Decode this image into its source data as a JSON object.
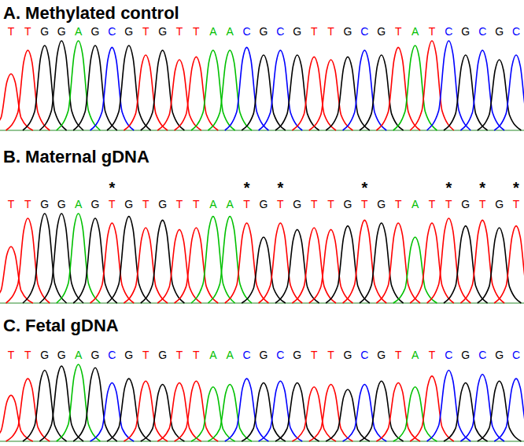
{
  "chart_data": [
    {
      "type": "chromatogram",
      "title": "A. Methylated control",
      "tick_labels": false,
      "categories": [
        "T",
        "T",
        "G",
        "G",
        "A",
        "G",
        "C",
        "G",
        "T",
        "G",
        "T",
        "T",
        "A",
        "A",
        "C",
        "G",
        "C",
        "G",
        "T",
        "T",
        "G",
        "C",
        "G",
        "T",
        "A",
        "T",
        "C",
        "G",
        "C",
        "G",
        "C"
      ],
      "values": [
        60,
        85,
        90,
        95,
        95,
        90,
        88,
        90,
        80,
        85,
        75,
        78,
        85,
        85,
        88,
        80,
        85,
        80,
        78,
        75,
        78,
        85,
        80,
        88,
        90,
        95,
        95,
        80,
        85,
        75,
        80
      ],
      "colors": [
        "#ff0000",
        "#ff0000",
        "#000000",
        "#000000",
        "#00c000",
        "#000000",
        "#0000ff",
        "#000000",
        "#ff0000",
        "#000000",
        "#ff0000",
        "#ff0000",
        "#00c000",
        "#00c000",
        "#0000ff",
        "#000000",
        "#0000ff",
        "#000000",
        "#ff0000",
        "#ff0000",
        "#000000",
        "#0000ff",
        "#000000",
        "#ff0000",
        "#00c000",
        "#ff0000",
        "#0000ff",
        "#000000",
        "#0000ff",
        "#000000",
        "#0000ff"
      ]
    },
    {
      "type": "chromatogram",
      "title": "B. Maternal gDNA",
      "tick_labels": false,
      "categories": [
        "T",
        "T",
        "G",
        "G",
        "A",
        "G",
        "T",
        "G",
        "T",
        "G",
        "T",
        "T",
        "A",
        "A",
        "T",
        "G",
        "T",
        "G",
        "T",
        "T",
        "G",
        "T",
        "G",
        "T",
        "A",
        "T",
        "T",
        "G",
        "T",
        "G",
        "T"
      ],
      "values": [
        60,
        90,
        95,
        95,
        95,
        90,
        85,
        92,
        80,
        88,
        78,
        80,
        92,
        92,
        85,
        70,
        85,
        78,
        80,
        78,
        82,
        88,
        85,
        85,
        70,
        85,
        90,
        82,
        88,
        80,
        82
      ],
      "colors": [
        "#ff0000",
        "#ff0000",
        "#000000",
        "#000000",
        "#00c000",
        "#000000",
        "#ff0000",
        "#000000",
        "#ff0000",
        "#000000",
        "#ff0000",
        "#ff0000",
        "#00c000",
        "#00c000",
        "#ff0000",
        "#000000",
        "#ff0000",
        "#000000",
        "#ff0000",
        "#ff0000",
        "#000000",
        "#ff0000",
        "#000000",
        "#ff0000",
        "#00c000",
        "#ff0000",
        "#ff0000",
        "#000000",
        "#ff0000",
        "#000000",
        "#ff0000"
      ],
      "annotations": [
        {
          "text": "*",
          "category_index": 6
        },
        {
          "text": "*",
          "category_index": 14
        },
        {
          "text": "*",
          "category_index": 16
        },
        {
          "text": "*",
          "category_index": 21
        },
        {
          "text": "*",
          "category_index": 26
        },
        {
          "text": "*",
          "category_index": 28
        },
        {
          "text": "*",
          "category_index": 30
        }
      ]
    },
    {
      "type": "chromatogram",
      "title": "C. Fetal gDNA",
      "tick_labels": false,
      "categories": [
        "T",
        "T",
        "G",
        "G",
        "A",
        "G",
        "C",
        "G",
        "T",
        "G",
        "T",
        "T",
        "A",
        "A",
        "C",
        "G",
        "C",
        "G",
        "T",
        "T",
        "G",
        "C",
        "G",
        "T",
        "A",
        "T",
        "C",
        "G",
        "C",
        "G",
        "C"
      ],
      "values": [
        55,
        75,
        85,
        90,
        92,
        88,
        70,
        75,
        72,
        68,
        70,
        72,
        65,
        68,
        75,
        70,
        72,
        70,
        65,
        68,
        62,
        68,
        72,
        70,
        65,
        78,
        85,
        70,
        80,
        72,
        75
      ],
      "colors": [
        "#ff0000",
        "#ff0000",
        "#000000",
        "#000000",
        "#00c000",
        "#000000",
        "#0000ff",
        "#000000",
        "#ff0000",
        "#000000",
        "#ff0000",
        "#ff0000",
        "#00c000",
        "#00c000",
        "#0000ff",
        "#000000",
        "#0000ff",
        "#000000",
        "#ff0000",
        "#ff0000",
        "#000000",
        "#0000ff",
        "#000000",
        "#ff0000",
        "#00c000",
        "#ff0000",
        "#0000ff",
        "#000000",
        "#0000ff",
        "#000000",
        "#0000ff"
      ]
    }
  ]
}
